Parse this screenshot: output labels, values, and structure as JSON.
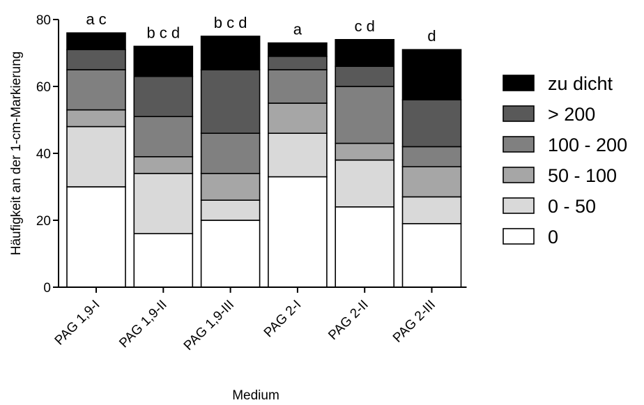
{
  "chart_data": {
    "type": "bar",
    "stacked": true,
    "xlabel": "Medium",
    "ylabel": "Häufigkeit an der 1-cm-Markierung",
    "ylim": [
      0,
      80
    ],
    "yticks": [
      0,
      20,
      40,
      60,
      80
    ],
    "categories": [
      "PAG 1,9-I",
      "PAG 1,9-II",
      "PAG 1,9-III",
      "PAG 2-I",
      "PAG 2-II",
      "PAG 2-III"
    ],
    "significance_labels": [
      "a c",
      "b c d",
      "b c d",
      "a",
      "c d",
      "d"
    ],
    "series": [
      {
        "name": "0",
        "color": "#ffffff",
        "values": [
          30,
          16,
          20,
          33,
          24,
          19
        ]
      },
      {
        "name": "0 - 50",
        "color": "#d9d9d9",
        "values": [
          18,
          18,
          6,
          13,
          14,
          8
        ]
      },
      {
        "name": "50 - 100",
        "color": "#a6a6a6",
        "values": [
          5,
          5,
          8,
          9,
          5,
          9
        ]
      },
      {
        "name": "100 - 200",
        "color": "#808080",
        "values": [
          12,
          12,
          12,
          10,
          17,
          6
        ]
      },
      {
        "name": "> 200",
        "color": "#595959",
        "values": [
          6,
          12,
          19,
          4,
          6,
          14
        ]
      },
      {
        "name": "zu dicht",
        "color": "#000000",
        "values": [
          5,
          9,
          10,
          4,
          8,
          15
        ]
      }
    ],
    "legend_position": "right",
    "legend_order": [
      "zu dicht",
      "> 200",
      "100 - 200",
      "50 - 100",
      "0 - 50",
      "0"
    ],
    "grid": false
  }
}
